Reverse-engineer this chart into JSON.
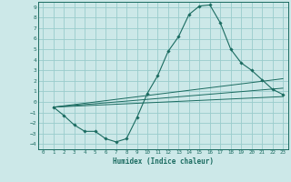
{
  "xlabel": "Humidex (Indice chaleur)",
  "bg_color": "#cce8e8",
  "grid_color": "#99cccc",
  "line_color": "#1a6b60",
  "xlim": [
    -0.5,
    23.5
  ],
  "ylim": [
    -4.5,
    9.5
  ],
  "xticks": [
    0,
    1,
    2,
    3,
    4,
    5,
    6,
    7,
    8,
    9,
    10,
    11,
    12,
    13,
    14,
    15,
    16,
    17,
    18,
    19,
    20,
    21,
    22,
    23
  ],
  "yticks": [
    -4,
    -3,
    -2,
    -1,
    0,
    1,
    2,
    3,
    4,
    5,
    6,
    7,
    8,
    9
  ],
  "curve1_x": [
    1,
    2,
    3,
    4,
    5,
    6,
    7,
    8,
    9,
    10,
    11,
    12,
    13,
    14,
    15,
    16,
    17,
    18,
    19,
    20,
    21,
    22,
    23
  ],
  "curve1_y": [
    -0.5,
    -1.3,
    -2.2,
    -2.8,
    -2.8,
    -3.5,
    -3.8,
    -3.5,
    -1.5,
    0.8,
    2.5,
    4.8,
    6.2,
    8.3,
    9.1,
    9.2,
    7.5,
    5.0,
    3.7,
    3.0,
    2.1,
    1.2,
    0.7
  ],
  "line1_x": [
    1,
    23
  ],
  "line1_y": [
    -0.5,
    0.5
  ],
  "line2_x": [
    1,
    23
  ],
  "line2_y": [
    -0.5,
    1.3
  ],
  "line3_x": [
    1,
    23
  ],
  "line3_y": [
    -0.5,
    2.2
  ]
}
